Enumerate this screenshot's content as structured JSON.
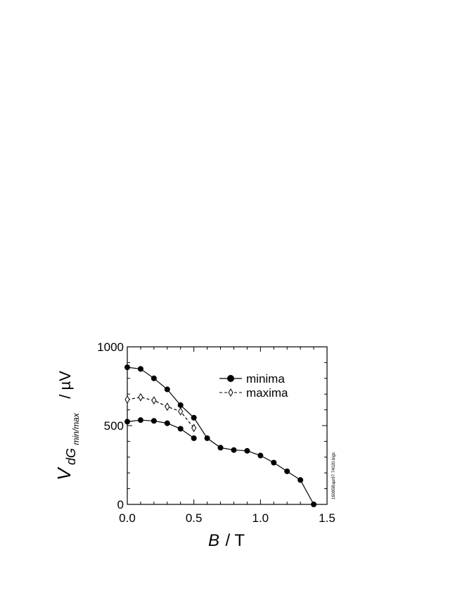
{
  "chart_data": {
    "type": "line",
    "xlabel_var": "B",
    "xlabel_unit": "/ T",
    "ylabel_var": "V",
    "ylabel_sub": "dG",
    "ylabel_subsub": "min/max",
    "ylabel_unit": "/ µV",
    "xlim": [
      0.0,
      1.5
    ],
    "ylim": [
      0,
      1000
    ],
    "xticks": [
      "0.0",
      "0.5",
      "1.0",
      "1.5"
    ],
    "xtick_values": [
      0.0,
      0.5,
      1.0,
      1.5
    ],
    "yticks": [
      "0",
      "500",
      "1000"
    ],
    "ytick_values": [
      0,
      500,
      1000
    ],
    "legend_position": "top-right",
    "side_note": "16085Bapr97 74020.bigs",
    "series": [
      {
        "name": "minima",
        "marker": "filled-circle",
        "line": "solid",
        "x": [
          0.0,
          0.1,
          0.2,
          0.3,
          0.4,
          0.5,
          0.6,
          0.7,
          0.8,
          0.9,
          1.0,
          1.1,
          1.2,
          1.3,
          1.4
        ],
        "values": [
          870,
          860,
          800,
          730,
          630,
          550,
          420,
          360,
          345,
          340,
          310,
          265,
          210,
          155,
          0
        ]
      },
      {
        "name": "",
        "marker": "filled-circle",
        "line": "solid",
        "x": [
          0.0,
          0.1,
          0.2,
          0.3,
          0.4,
          0.5
        ],
        "values": [
          525,
          535,
          530,
          515,
          480,
          420
        ]
      },
      {
        "name": "maxima",
        "marker": "open-diamond",
        "line": "dashed",
        "x": [
          0.0,
          0.1,
          0.2,
          0.3,
          0.4,
          0.5
        ],
        "values": [
          665,
          680,
          660,
          620,
          590,
          485
        ]
      }
    ]
  }
}
